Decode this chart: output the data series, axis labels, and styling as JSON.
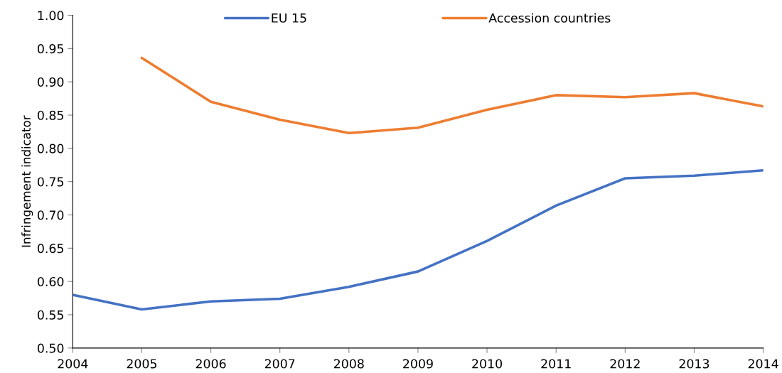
{
  "chart_data": {
    "type": "line",
    "ylabel": "Infringement indicator",
    "x": [
      2004,
      2005,
      2006,
      2007,
      2008,
      2009,
      2010,
      2011,
      2012,
      2013,
      2014
    ],
    "series": [
      {
        "name": "EU 15",
        "color": "#4472c4",
        "values": [
          0.58,
          0.558,
          0.57,
          0.574,
          0.592,
          0.615,
          0.661,
          0.714,
          0.755,
          0.759,
          0.767
        ]
      },
      {
        "name": "Accession countries",
        "color": "#ed7d31",
        "values": [
          null,
          0.936,
          0.87,
          0.843,
          0.823,
          0.831,
          0.858,
          0.88,
          0.877,
          0.883,
          0.863
        ]
      }
    ],
    "xlim": [
      2004,
      2014
    ],
    "xticks": [
      2004,
      2005,
      2006,
      2007,
      2008,
      2009,
      2010,
      2011,
      2012,
      2013,
      2014
    ],
    "ylim": [
      0.5,
      1.0
    ],
    "yticks": [
      {
        "value": 0.5,
        "label": "0.50"
      },
      {
        "value": 0.55,
        "label": "0.55"
      },
      {
        "value": 0.6,
        "label": "0.60"
      },
      {
        "value": 0.65,
        "label": "0.65"
      },
      {
        "value": 0.7,
        "label": "0.70"
      },
      {
        "value": 0.75,
        "label": "0.75"
      },
      {
        "value": 0.8,
        "label": "0.80"
      },
      {
        "value": 0.85,
        "label": "0.85"
      },
      {
        "value": 0.9,
        "label": "0.90"
      },
      {
        "value": 0.95,
        "label": "0.95"
      },
      {
        "value": 1.0,
        "label": "1.00"
      }
    ],
    "grid": false,
    "legend": "top",
    "marker": "none",
    "line_style": "solid"
  }
}
